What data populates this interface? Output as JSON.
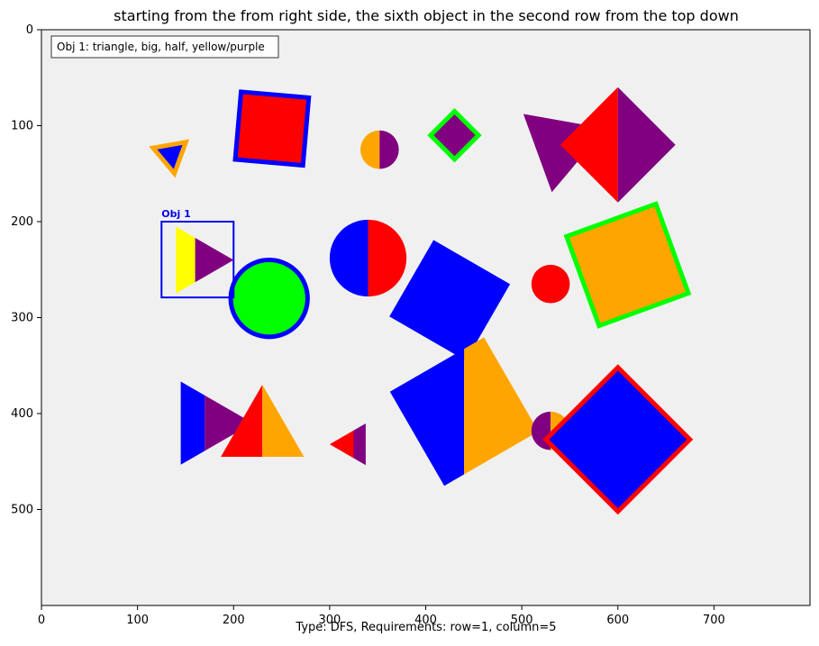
{
  "title": "starting from the from right side, the sixth object in the second row from the top down",
  "footer": "Type: DFS, Requirements: row=1, column=5",
  "legend_text": "Obj 1: triangle, big, half, yellow/purple",
  "highlight_label": "Obj 1",
  "colors": {
    "background": "#f0f0f0",
    "highlight": "#0000ee"
  },
  "chart_data": {
    "type": "scatter",
    "xlim": [
      0,
      800
    ],
    "ylim": [
      600,
      0
    ],
    "x_ticks": [
      0,
      100,
      200,
      300,
      400,
      500,
      600,
      700
    ],
    "y_ticks": [
      0,
      100,
      200,
      300,
      400,
      500
    ],
    "highlight_box": {
      "x0": 125,
      "y0": 200,
      "x1": 200,
      "y1": 279
    },
    "objects": [
      {
        "shape": "triangle",
        "cx": 135,
        "cy": 130,
        "r": 20,
        "rot": 200,
        "fill": [
          "#0000ff"
        ],
        "outline": "#ffa500"
      },
      {
        "shape": "square",
        "cx": 240,
        "cy": 103,
        "r": 50,
        "rot": 5,
        "fill": [
          "#ff0000"
        ],
        "outline": "#0000ff"
      },
      {
        "shape": "circle",
        "cx": 352,
        "cy": 125,
        "r": 20,
        "rot": 0,
        "fill": [
          "#ffa500",
          "#800080"
        ],
        "outline": null
      },
      {
        "shape": "square",
        "cx": 430,
        "cy": 110,
        "r": 25,
        "rot": 45,
        "fill": [
          "#800080"
        ],
        "outline": "#00ff00"
      },
      {
        "shape": "triangle",
        "cx": 540,
        "cy": 120,
        "r": 50,
        "rot": 100,
        "fill": [
          "#800080"
        ],
        "outline": null
      },
      {
        "shape": "square",
        "cx": 600,
        "cy": 120,
        "r": 60,
        "rot": 45,
        "fill": [
          "#ff0000",
          "#800080"
        ],
        "outline": null
      },
      {
        "shape": "triangle",
        "cx": 160,
        "cy": 240,
        "r": 40,
        "rot": 0,
        "fill": [
          "#ffff00",
          "#800080"
        ],
        "outline": null
      },
      {
        "shape": "circle",
        "cx": 237,
        "cy": 280,
        "r": 40,
        "rot": 0,
        "fill": [
          "#00ff00"
        ],
        "outline": "#0000ff"
      },
      {
        "shape": "circle",
        "cx": 340,
        "cy": 238,
        "r": 40,
        "rot": 0,
        "fill": [
          "#0000ff",
          "#ff0000"
        ],
        "outline": null
      },
      {
        "shape": "square",
        "cx": 425,
        "cy": 282,
        "r": 65,
        "rot": 30,
        "fill": [
          "#0000ff"
        ],
        "outline": null
      },
      {
        "shape": "circle",
        "cx": 530,
        "cy": 265,
        "r": 20,
        "rot": 0,
        "fill": [
          "#ff0000"
        ],
        "outline": null
      },
      {
        "shape": "square",
        "cx": 610,
        "cy": 245,
        "r": 70,
        "rot": -20,
        "fill": [
          "#ffa500"
        ],
        "outline": "#00ff00"
      },
      {
        "shape": "triangle",
        "cx": 170,
        "cy": 410,
        "r": 50,
        "rot": 0,
        "fill": [
          "#0000ff",
          "#800080"
        ],
        "outline": null
      },
      {
        "shape": "triangle",
        "cx": 230,
        "cy": 420,
        "r": 50,
        "rot": -90,
        "fill": [
          "#ff0000",
          "#ffa500"
        ],
        "outline": null
      },
      {
        "shape": "triangle",
        "cx": 325,
        "cy": 432,
        "r": 25,
        "rot": 180,
        "fill": [
          "#ff0000",
          "#800080"
        ],
        "outline": null
      },
      {
        "shape": "square",
        "cx": 440,
        "cy": 398,
        "r": 80,
        "rot": -30,
        "fill": [
          "#0000ff",
          "#ffa500"
        ],
        "outline": null
      },
      {
        "shape": "circle",
        "cx": 530,
        "cy": 418,
        "r": 20,
        "rot": 0,
        "fill": [
          "#800080",
          "#ffa500"
        ],
        "outline": null
      },
      {
        "shape": "square",
        "cx": 600,
        "cy": 427,
        "r": 75,
        "rot": 45,
        "fill": [
          "#0000ff"
        ],
        "outline": "#ff0000"
      }
    ]
  }
}
